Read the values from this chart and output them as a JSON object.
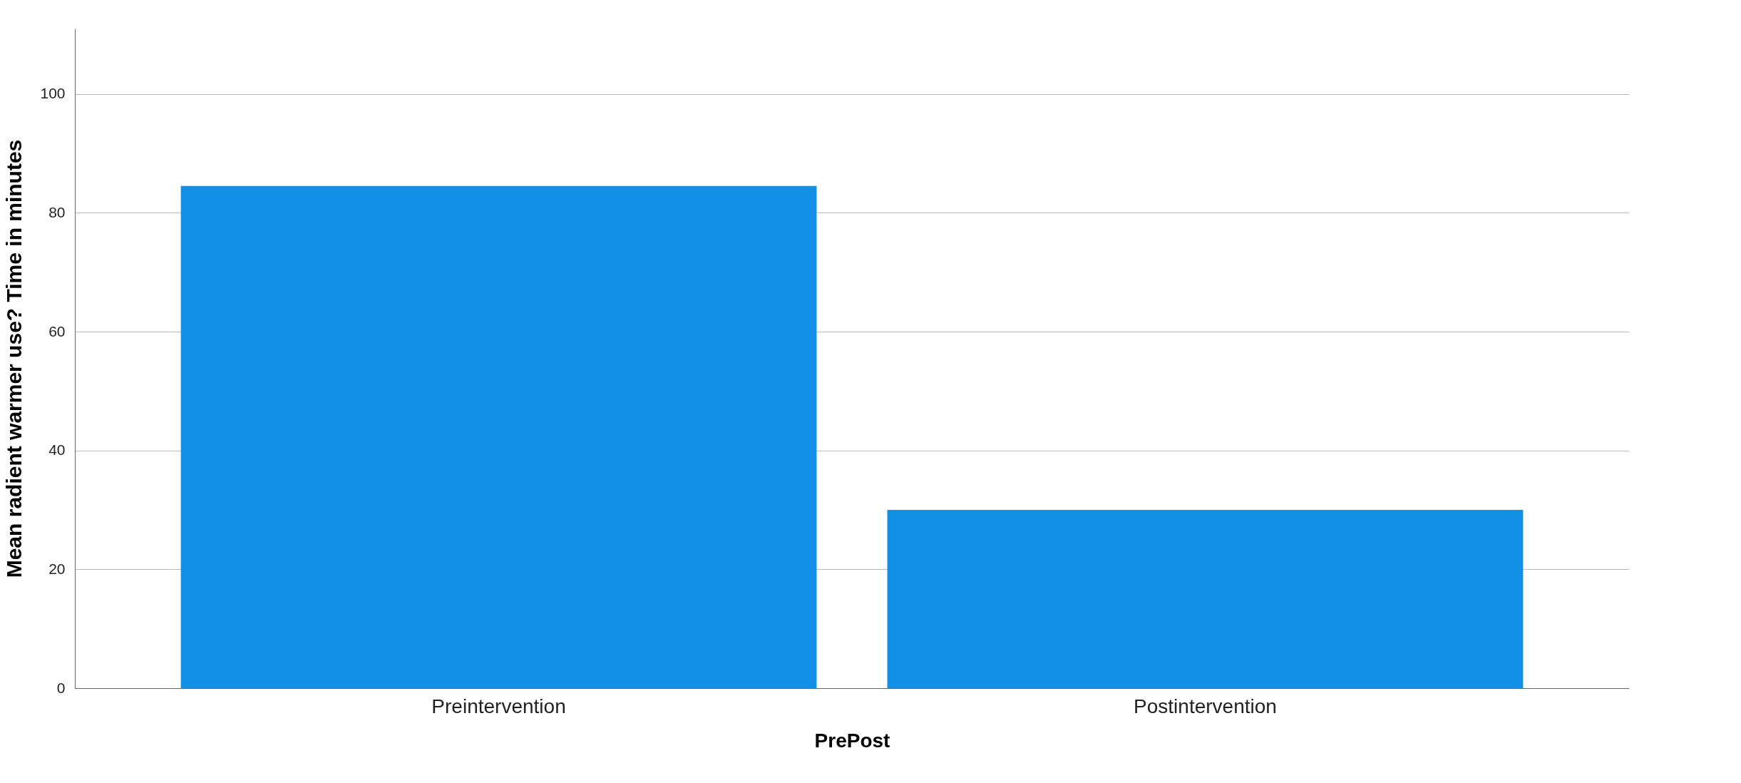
{
  "chart_data": {
    "type": "bar",
    "xlabel": "PrePost",
    "ylabel": "Mean radient warmer use? Time in minutes",
    "categories": [
      "Preintervention",
      "Postintervention"
    ],
    "values": [
      84.5,
      30.0
    ],
    "color": "#1290e6",
    "ylim": [
      0,
      111
    ],
    "yticks": [
      0,
      20,
      40,
      60,
      80,
      100
    ],
    "grid": "y"
  }
}
